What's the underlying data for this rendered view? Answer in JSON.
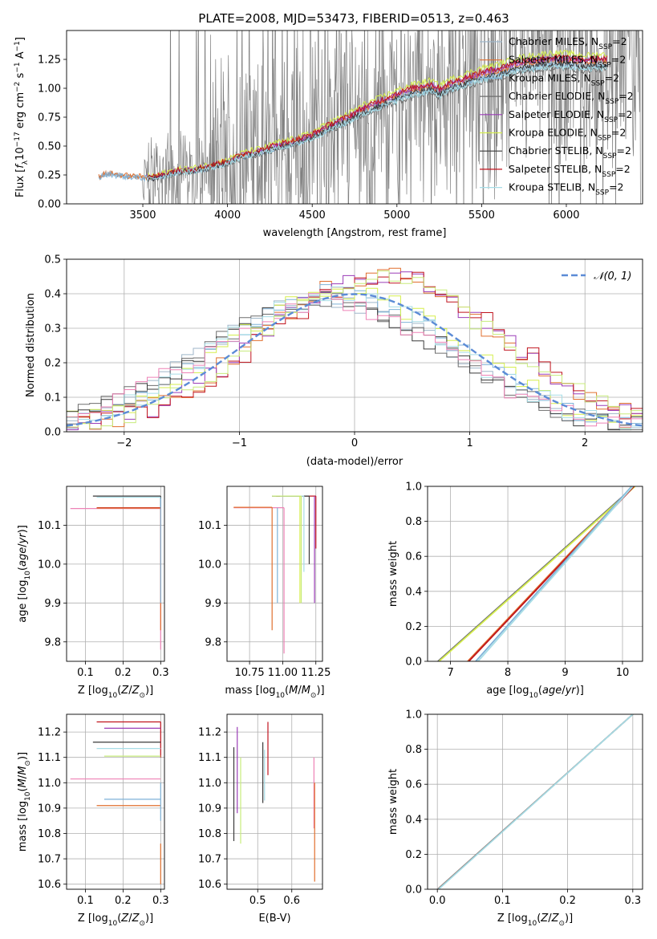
{
  "figure": {
    "title": "PLATE=2008, MJD=53473, FIBERID=0513, z=0.463"
  },
  "colors": {
    "chabrier_miles": "#9fb6c9",
    "salpeter_miles": "#e06f2e",
    "kroupa_miles": "#7fb2d8",
    "chabrier_elodie": "#6d6d6d",
    "salpeter_elodie": "#9b3db8",
    "kroupa_elodie": "#d5ee4d",
    "chabrier_stelib": "#3a3a3a",
    "salpeter_stelib": "#c0141e",
    "kroupa_stelib": "#a7dde6",
    "data": "#808080",
    "normal": "#5b8bd6",
    "pink": "#ee82b6",
    "lightgreen": "#c8ec7c",
    "grid": "#b0b0b0"
  },
  "chart_data": [
    {
      "id": "spectrum",
      "type": "line",
      "title": "PLATE=2008, MJD=53473, FIBERID=0513, z=0.463",
      "xlabel": "wavelength [Angstrom, rest frame]",
      "ylabel": "Flux [fλ10⁻¹⁷ erg cm⁻² s⁻¹ A⁻¹]",
      "xlim": [
        3050,
        6450
      ],
      "ylim": [
        0,
        1.5
      ],
      "xticks": [
        3500,
        4000,
        4500,
        5000,
        5500,
        6000
      ],
      "yticks": [
        0.0,
        0.25,
        0.5,
        0.75,
        1.0,
        1.25
      ],
      "grid": false,
      "legend_position": "top-right",
      "legend": [
        "Chabrier MILES, N_SSP=2",
        "Salpeter MILES, N_SSP=2",
        "Kroupa MILES, N_SSP=2",
        "Chabrier ELODIE, N_SSP=2",
        "Salpeter ELODIE, N_SSP=2",
        "Kroupa ELODIE, N_SSP=2",
        "Chabrier STELIB, N_SSP=2",
        "Salpeter STELIB, N_SSP=2",
        "Kroupa STELIB, N_SSP=2"
      ],
      "model_curve": {
        "x": [
          3240,
          3270,
          3300,
          3400,
          3500,
          3550,
          3600,
          3700,
          3800,
          3900,
          4000,
          4100,
          4200,
          4300,
          4400,
          4500,
          4600,
          4700,
          4800,
          4900,
          5000,
          5100,
          5200,
          5250,
          5300,
          5400,
          5500,
          5600,
          5700,
          5800,
          5900,
          6000,
          6100,
          6200
        ],
        "y": [
          0.23,
          0.25,
          0.26,
          0.24,
          0.23,
          0.22,
          0.24,
          0.28,
          0.29,
          0.32,
          0.36,
          0.42,
          0.45,
          0.5,
          0.53,
          0.58,
          0.66,
          0.72,
          0.8,
          0.86,
          0.92,
          0.97,
          1.0,
          0.96,
          1.0,
          1.05,
          1.1,
          1.13,
          1.18,
          1.2,
          1.22,
          1.22,
          1.2,
          1.21
        ]
      }
    },
    {
      "id": "residuals",
      "type": "line",
      "xlabel": "(data-model)/error",
      "ylabel": "Normed distribution",
      "xlim": [
        -2.5,
        2.5
      ],
      "ylim": [
        0,
        0.5
      ],
      "xticks": [
        -2,
        -1,
        0,
        1,
        2
      ],
      "yticks": [
        0.0,
        0.1,
        0.2,
        0.3,
        0.4,
        0.5
      ],
      "grid": true,
      "legend_position": "top-right",
      "legend": [
        "𝒩(0, 1)"
      ],
      "normal_curve": {
        "mean": 0,
        "sigma": 1
      },
      "histogram_groups": [
        {
          "shift": -0.25,
          "peak": 0.38
        },
        {
          "shift": 0.25,
          "peak": 0.45
        },
        {
          "shift": -0.1,
          "peak": 0.4
        }
      ]
    },
    {
      "id": "age-vs-z",
      "type": "scatter",
      "xlabel": "Z [log₁₀(Z/Z⊙)]",
      "ylabel": "age  [log₁₀(age/yr)]",
      "xlim": [
        0.05,
        0.31
      ],
      "ylim": [
        9.75,
        10.2
      ],
      "xticks": [
        0.1,
        0.2,
        0.3
      ],
      "yticks": [
        9.8,
        9.9,
        10.0,
        10.1
      ],
      "grid": true
    },
    {
      "id": "age-vs-mass",
      "type": "scatter",
      "xlabel": "mass [log₁₀(M/M⊙)]",
      "xlim": [
        10.58,
        11.3
      ],
      "ylim": [
        9.75,
        10.2
      ],
      "xticks": [
        10.75,
        11.0,
        11.25
      ],
      "yticks": [
        9.8,
        9.9,
        10.0,
        10.1
      ],
      "grid": true
    },
    {
      "id": "weight-vs-age",
      "type": "line",
      "xlabel": "age  [log₁₀(age/yr)]",
      "ylabel": "mass weight",
      "xlim": [
        6.6,
        10.35
      ],
      "ylim": [
        0,
        1.0
      ],
      "xticks": [
        7,
        8,
        9,
        10
      ],
      "yticks": [
        0.0,
        0.2,
        0.4,
        0.6,
        0.8,
        1.0
      ],
      "grid": true
    },
    {
      "id": "mass-vs-z",
      "type": "scatter",
      "xlabel": "Z [log₁₀(Z/Z⊙)]",
      "ylabel": "mass [log₁₀(M/M⊙)]",
      "xlim": [
        0.05,
        0.31
      ],
      "ylim": [
        10.58,
        11.27
      ],
      "xticks": [
        0.1,
        0.2,
        0.3
      ],
      "yticks": [
        10.6,
        10.7,
        10.8,
        10.9,
        11.0,
        11.1,
        11.2
      ],
      "grid": true
    },
    {
      "id": "mass-vs-ebv",
      "type": "scatter",
      "xlabel": "E(B-V)",
      "xlim": [
        0.41,
        0.69
      ],
      "ylim": [
        10.58,
        11.27
      ],
      "xticks": [
        0.5,
        0.6
      ],
      "yticks": [
        10.6,
        10.7,
        10.8,
        10.9,
        11.0,
        11.1,
        11.2
      ],
      "grid": true
    },
    {
      "id": "weight-vs-z",
      "type": "line",
      "xlabel": "Z [log₁₀(Z/Z⊙)]",
      "ylabel": "mass weight",
      "xlim": [
        -0.015,
        0.315
      ],
      "ylim": [
        0,
        1.0
      ],
      "xticks": [
        0.0,
        0.1,
        0.2,
        0.3
      ],
      "yticks": [
        0.0,
        0.2,
        0.4,
        0.6,
        0.8,
        1.0
      ],
      "grid": true
    }
  ],
  "panels_axes_labels": {
    "spectrum_xlabel": "wavelength [Angstrom, rest frame]",
    "residuals_xlabel": "(data-model)/error",
    "residuals_ylabel": "Normed distribution",
    "age_z_xlabel": "Z [log₁₀(Z/Z⊙)]",
    "age_z_ylabel": "age  [log₁₀(age/yr)]",
    "age_mass_xlabel": "mass [log₁₀(M/M⊙)]",
    "weight_age_xlabel": "age  [log₁₀(age/yr)]",
    "weight_age_ylabel": "mass weight",
    "mass_z_xlabel": "Z [log₁₀(Z/Z⊙)]",
    "mass_z_ylabel": "mass [log₁₀(M/M⊙)]",
    "mass_ebv_xlabel": "E(B-V)",
    "weight_z_xlabel": "Z [log₁₀(Z/Z⊙)]",
    "weight_z_ylabel": "mass weight"
  }
}
